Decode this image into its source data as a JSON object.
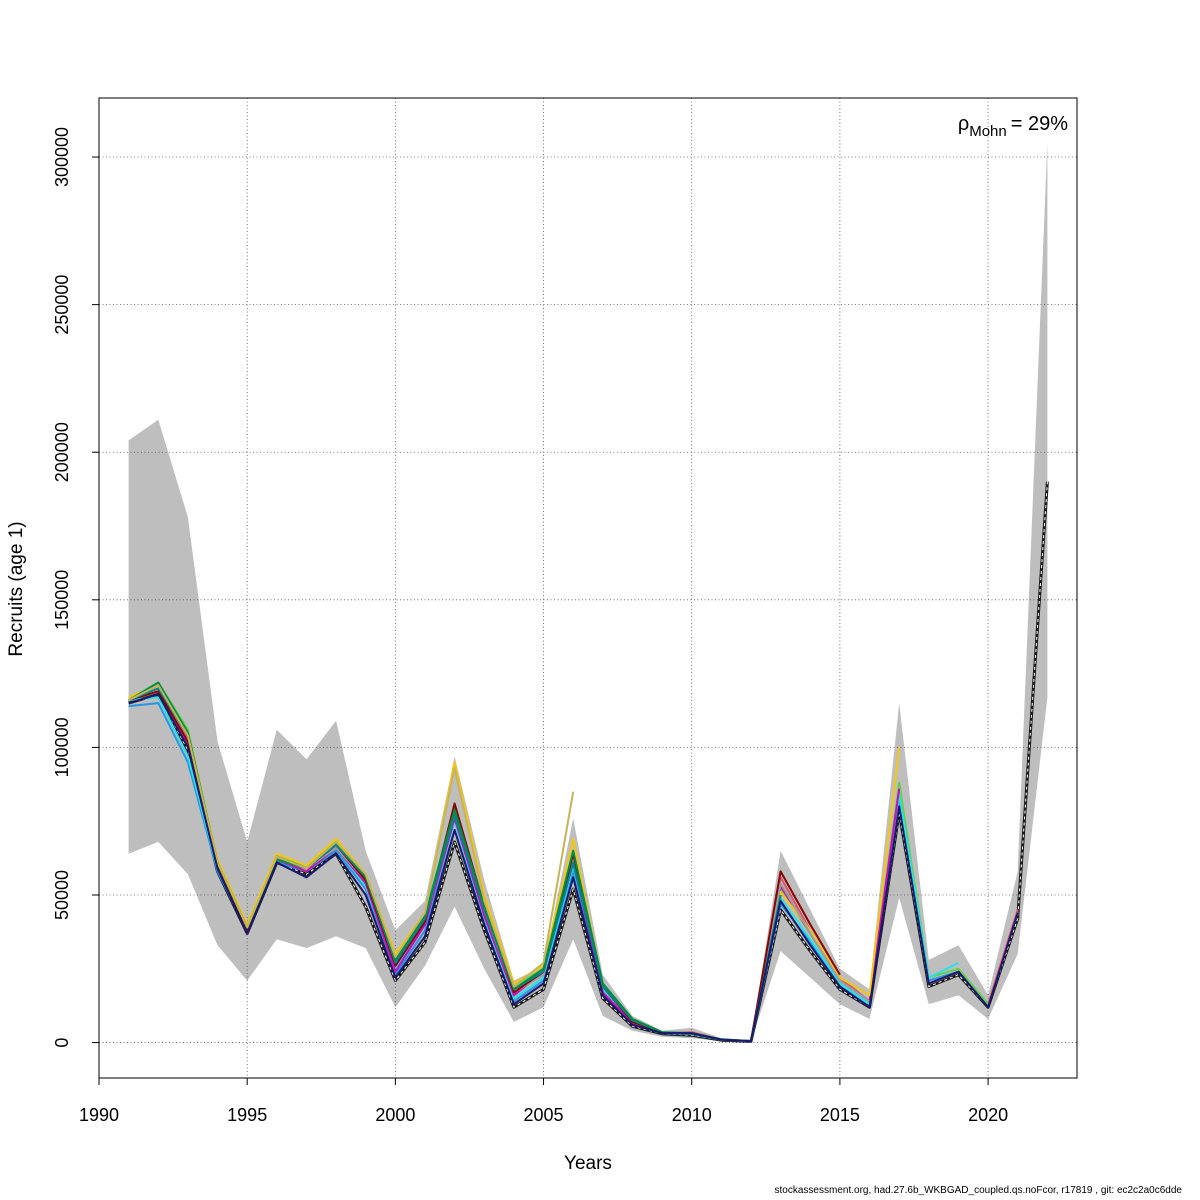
{
  "chart_data": {
    "type": "line",
    "xlabel": "Years",
    "ylabel": "Recruits (age 1)",
    "xlim": [
      1990,
      2023
    ],
    "ylim": [
      -12000,
      320000
    ],
    "xticks": [
      1990,
      1995,
      2000,
      2005,
      2010,
      2015,
      2020
    ],
    "yticks": [
      0,
      50000,
      100000,
      150000,
      200000,
      250000,
      300000
    ],
    "grid": true,
    "annotation": {
      "symbol": "ρ",
      "subscript": "Mohn",
      "text": "= 29%"
    },
    "band": {
      "x": [
        1991,
        1992,
        1993,
        1994,
        1995,
        1996,
        1997,
        1998,
        1999,
        2000,
        2001,
        2002,
        2003,
        2004,
        2005,
        2006,
        2007,
        2008,
        2009,
        2010,
        2011,
        2012,
        2013,
        2014,
        2015,
        2016,
        2017,
        2018,
        2019,
        2020,
        2021,
        2022
      ],
      "upper": [
        204000,
        211000,
        178000,
        102000,
        68000,
        106000,
        96000,
        109000,
        65000,
        38000,
        48000,
        97000,
        55000,
        21000,
        26000,
        76000,
        23000,
        9000,
        4000,
        5000,
        1500,
        800,
        65000,
        45000,
        25000,
        18000,
        115000,
        28000,
        33000,
        16000,
        58000,
        305000
      ],
      "lower": [
        64000,
        68000,
        57000,
        33000,
        21000,
        35000,
        32000,
        36000,
        32000,
        12000,
        26000,
        46000,
        25000,
        7000,
        12000,
        35000,
        9000,
        4000,
        2000,
        1500,
        500,
        300,
        31000,
        22000,
        13000,
        8000,
        49000,
        13000,
        16000,
        8000,
        30000,
        117000
      ],
      "color": "#bebebe"
    },
    "series": [
      {
        "color": "#1a1a1a",
        "dashed": true,
        "x": [
          1991,
          1992,
          1993,
          1994,
          1995,
          1996,
          1997,
          1998,
          1999,
          2000,
          2001,
          2002,
          2003,
          2004,
          2005,
          2006,
          2007,
          2008,
          2009,
          2010,
          2011,
          2012,
          2013,
          2014,
          2015,
          2016,
          2017,
          2018,
          2019,
          2020,
          2021,
          2022
        ],
        "values": [
          115000,
          118000,
          99000,
          58000,
          37000,
          61000,
          57000,
          64000,
          46000,
          21000,
          34000,
          68000,
          38000,
          12000,
          18000,
          52000,
          15000,
          5500,
          3000,
          2500,
          800,
          400,
          45000,
          31000,
          18000,
          12000,
          78000,
          19000,
          23000,
          12000,
          42000,
          190000
        ]
      },
      {
        "color": "#df536b",
        "x": [
          1991,
          1992,
          1993,
          1994,
          1995,
          1996,
          1997,
          1998,
          1999,
          2000,
          2001,
          2002,
          2003,
          2004,
          2005,
          2006,
          2007,
          2008,
          2009,
          2010,
          2011,
          2012,
          2013,
          2014,
          2015,
          2016,
          2017,
          2018,
          2019,
          2020,
          2021
        ],
        "values": [
          116000,
          121000,
          103000,
          60000,
          38000,
          63000,
          59000,
          67000,
          55000,
          27000,
          42000,
          78000,
          44000,
          17000,
          23000,
          62000,
          18000,
          7000,
          3300,
          3500,
          1000,
          500,
          56000,
          38000,
          22000,
          14000,
          87000,
          20000,
          24000,
          13000,
          45000
        ]
      },
      {
        "color": "#61d04f",
        "x": [
          1991,
          1992,
          1993,
          1994,
          1995,
          1996,
          1997,
          1998,
          1999,
          2000,
          2001,
          2002,
          2003,
          2004,
          2005,
          2006,
          2007,
          2008,
          2009,
          2010,
          2011,
          2012,
          2013,
          2014,
          2015,
          2016,
          2017,
          2018,
          2019,
          2020
        ],
        "values": [
          116000,
          122000,
          106000,
          61000,
          40000,
          63000,
          60000,
          68000,
          56000,
          28000,
          43000,
          80000,
          46000,
          19000,
          25000,
          63000,
          20000,
          8000,
          3500,
          3000,
          1000,
          500,
          52000,
          37000,
          21000,
          14000,
          88000,
          22000,
          25000,
          13000
        ]
      },
      {
        "color": "#2297e6",
        "x": [
          1991,
          1992,
          1993,
          1994,
          1995,
          1996,
          1997,
          1998,
          1999,
          2000,
          2001,
          2002,
          2003,
          2004,
          2005,
          2006,
          2007,
          2008,
          2009,
          2010,
          2011,
          2012,
          2013,
          2014,
          2015,
          2016,
          2017,
          2018,
          2019
        ],
        "values": [
          114000,
          115000,
          95000,
          58000,
          38000,
          61000,
          58000,
          65000,
          52000,
          23000,
          38000,
          72000,
          41000,
          14000,
          21000,
          58000,
          17000,
          6500,
          3200,
          2800,
          900,
          450,
          47000,
          34000,
          19000,
          13000,
          82000,
          21000,
          24000
        ]
      },
      {
        "color": "#28e2e5",
        "x": [
          1991,
          1992,
          1993,
          1994,
          1995,
          1996,
          1997,
          1998,
          1999,
          2000,
          2001,
          2002,
          2003,
          2004,
          2005,
          2006,
          2007,
          2008,
          2009,
          2010,
          2011,
          2012,
          2013,
          2014,
          2015,
          2016,
          2017,
          2018,
          2019
        ],
        "values": [
          116000,
          117000,
          97000,
          59000,
          39000,
          62000,
          58000,
          66000,
          53000,
          25000,
          40000,
          75000,
          42000,
          15000,
          22000,
          60000,
          18000,
          7500,
          3400,
          3000,
          1000,
          500,
          49000,
          35000,
          20000,
          13000,
          84000,
          22000,
          27000
        ]
      },
      {
        "color": "#cd0bbc",
        "x": [
          1991,
          1992,
          1993,
          1994,
          1995,
          1996,
          1997,
          1998,
          1999,
          2000,
          2001,
          2002,
          2003,
          2004,
          2005,
          2006,
          2007,
          2008,
          2009,
          2010,
          2011,
          2012,
          2013,
          2014,
          2015,
          2016,
          2017
        ],
        "values": [
          116000,
          120000,
          101000,
          60000,
          37000,
          62000,
          58000,
          66000,
          54000,
          24000,
          40000,
          76000,
          43000,
          16000,
          24000,
          61000,
          17000,
          6500,
          3500,
          3000,
          1000,
          500,
          53000,
          37000,
          21000,
          14000,
          86000
        ]
      },
      {
        "color": "#f5c710",
        "x": [
          1991,
          1992,
          1993,
          1994,
          1995,
          1996,
          1997,
          1998,
          1999,
          2000,
          2001,
          2002,
          2003,
          2004,
          2005,
          2006,
          2007,
          2008,
          2009,
          2010,
          2011,
          2012,
          2013,
          2014,
          2015,
          2016,
          2017
        ],
        "values": [
          117000,
          121000,
          105000,
          62000,
          40000,
          64000,
          60000,
          69000,
          57000,
          30000,
          44000,
          95000,
          50000,
          20000,
          26000,
          69000,
          19000,
          7000,
          3500,
          3200,
          1100,
          500,
          51000,
          38000,
          22000,
          16000,
          100000
        ]
      },
      {
        "color": "#9e9e9e",
        "x": [
          1991,
          1992,
          1993,
          1994,
          1995,
          1996,
          1997,
          1998,
          1999,
          2000,
          2001,
          2002,
          2003,
          2004,
          2005,
          2006,
          2007,
          2008,
          2009,
          2010,
          2011,
          2012,
          2013,
          2014,
          2015,
          2016
        ],
        "values": [
          116000,
          120000,
          102000,
          60000,
          39000,
          62000,
          59000,
          66000,
          55000,
          26000,
          41000,
          79000,
          45000,
          17000,
          23000,
          63000,
          19000,
          7000,
          3400,
          3100,
          1000,
          500,
          54000,
          37000,
          21000,
          14000
        ]
      },
      {
        "color": "#8b0000",
        "x": [
          1991,
          1992,
          1993,
          1994,
          1995,
          1996,
          1997,
          1998,
          1999,
          2000,
          2001,
          2002,
          2003,
          2004,
          2005,
          2006,
          2007,
          2008,
          2009,
          2010,
          2011,
          2012,
          2013,
          2014,
          2015
        ],
        "values": [
          116000,
          119000,
          102000,
          60000,
          38000,
          63000,
          59000,
          67000,
          55000,
          26000,
          41000,
          81000,
          46000,
          17000,
          24000,
          64000,
          19000,
          7000,
          3400,
          3000,
          1000,
          500,
          58000,
          40000,
          23000
        ]
      },
      {
        "color": "#00868b",
        "x": [
          1991,
          1992,
          1993,
          1994,
          1995,
          1996,
          1997,
          1998,
          1999,
          2000,
          2001,
          2002,
          2003,
          2004,
          2005,
          2006,
          2007,
          2008,
          2009,
          2010,
          2011,
          2012,
          2013
        ],
        "values": [
          116000,
          120000,
          104000,
          61000,
          39000,
          62000,
          59000,
          67000,
          56000,
          27000,
          42000,
          77000,
          45000,
          18000,
          24000,
          61000,
          19000,
          7500,
          3500,
          3200,
          1100,
          500,
          50000
        ]
      },
      {
        "color": "#008b45",
        "x": [
          1991,
          1992,
          1993,
          1994,
          1995,
          1996,
          1997,
          1998,
          1999,
          2000,
          2001,
          2002,
          2003,
          2004,
          2005,
          2006,
          2007,
          2008,
          2009,
          2010,
          2011
        ],
        "values": [
          116000,
          122000,
          105000,
          61000,
          39000,
          62000,
          59000,
          68000,
          56000,
          28000,
          43000,
          79000,
          46000,
          18000,
          25000,
          65000,
          20000,
          8000,
          3500,
          3000,
          1000
        ]
      },
      {
        "color": "#c6b45a",
        "x": [
          1991,
          1992,
          1993,
          1994,
          1995,
          1996,
          1997,
          1998,
          1999,
          2000,
          2001,
          2002,
          2003,
          2004,
          2005,
          2006
        ],
        "values": [
          116000,
          121000,
          104000,
          61000,
          39000,
          63000,
          59000,
          68000,
          57000,
          29000,
          44000,
          93000,
          48000,
          19000,
          27000,
          85000
        ]
      },
      {
        "color": "#191970",
        "x": [
          1991,
          1992,
          1993,
          1994,
          1995,
          1996,
          1997,
          1998,
          1999,
          2000,
          2001,
          2002,
          2003,
          2004,
          2005,
          2006,
          2007,
          2008,
          2009,
          2010,
          2011,
          2012,
          2013,
          2014,
          2015,
          2016,
          2017,
          2018,
          2019,
          2020,
          2021
        ],
        "values": [
          115000,
          118000,
          100000,
          59000,
          37000,
          61000,
          56000,
          64000,
          50000,
          22000,
          36000,
          72000,
          40000,
          13000,
          20000,
          56000,
          16000,
          6000,
          3200,
          3200,
          1000,
          500,
          48000,
          33000,
          19000,
          12000,
          80000,
          20000,
          24000,
          12000,
          44000
        ]
      }
    ]
  },
  "footer": "stockassessment.org, had.27.6b_WKBGAD_coupled.qs.noFcor, r17819 , git: ec2c2a0c6dde"
}
